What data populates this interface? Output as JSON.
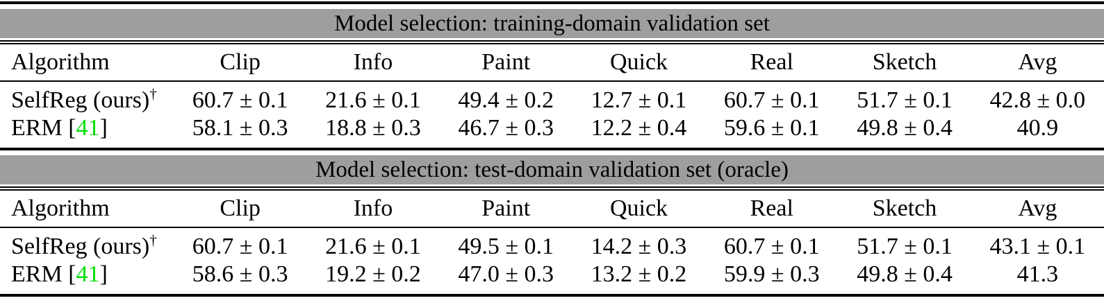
{
  "colors": {
    "header_bar_bg": "#9e9e9c",
    "citation_green": "#00dd00",
    "rule_black": "#000000",
    "paper_white": "#ffffff"
  },
  "columns": [
    "Algorithm",
    "Clip",
    "Info",
    "Paint",
    "Quick",
    "Real",
    "Sketch",
    "Avg"
  ],
  "tables": [
    {
      "title": "Model selection: training-domain validation set",
      "rows": [
        {
          "name": "SelfReg (ours)",
          "sup": "†",
          "cite_open": "",
          "cite_num": "",
          "cite_close": "",
          "values": [
            "60.7 ± 0.1",
            "21.6 ± 0.1",
            "49.4 ± 0.2",
            "12.7 ± 0.1",
            "60.7 ± 0.1",
            "51.7 ± 0.1",
            "42.8 ± 0.0"
          ]
        },
        {
          "name": "ERM",
          "sup": "",
          "cite_open": " [",
          "cite_num": "41",
          "cite_close": "]",
          "values": [
            "58.1 ± 0.3",
            "18.8 ± 0.3",
            "46.7 ± 0.3",
            "12.2 ± 0.4",
            "59.6 ± 0.1",
            "49.8 ± 0.4",
            "40.9"
          ]
        }
      ]
    },
    {
      "title": "Model selection: test-domain validation set (oracle)",
      "rows": [
        {
          "name": "SelfReg (ours)",
          "sup": "†",
          "cite_open": "",
          "cite_num": "",
          "cite_close": "",
          "values": [
            "60.7 ± 0.1",
            "21.6 ± 0.1",
            "49.5 ± 0.1",
            "14.2 ± 0.3",
            "60.7 ± 0.1",
            "51.7 ± 0.1",
            "43.1 ± 0.1"
          ]
        },
        {
          "name": "ERM",
          "sup": "",
          "cite_open": " [",
          "cite_num": "41",
          "cite_close": "]",
          "values": [
            "58.6 ± 0.3",
            "19.2 ± 0.2",
            "47.0 ± 0.3",
            "13.2 ± 0.2",
            "59.9 ± 0.3",
            "49.8 ± 0.4",
            "41.3"
          ]
        }
      ]
    }
  ]
}
